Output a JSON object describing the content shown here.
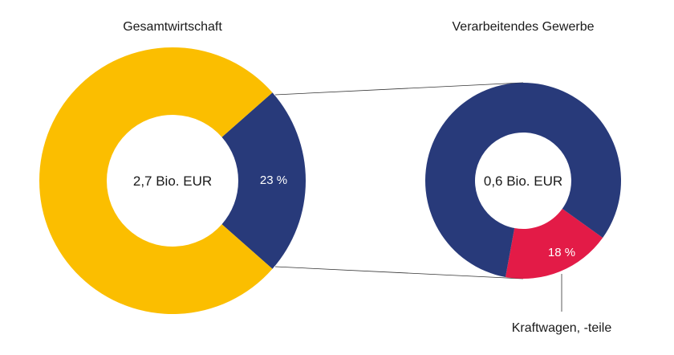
{
  "chart_data": [
    {
      "type": "pie",
      "title": "Gesamtwirtschaft",
      "center_label": "2,7 Bio. EUR",
      "slices": [
        {
          "name": "",
          "value": 23,
          "label": "23 %",
          "color": "#283A7A"
        },
        {
          "name": "",
          "value": 77,
          "label": "",
          "color": "#FBBE00"
        }
      ]
    },
    {
      "type": "pie",
      "title": "Verarbeitendes Gewerbe",
      "center_label": "0,6 Bio. EUR",
      "slices": [
        {
          "name": "Kraftwagen, -teile",
          "value": 18,
          "label": "18 %",
          "color": "#E31B47"
        },
        {
          "name": "",
          "value": 82,
          "label": "",
          "color": "#283A7A"
        }
      ],
      "annotation": "Kraftwagen, -teile"
    }
  ]
}
